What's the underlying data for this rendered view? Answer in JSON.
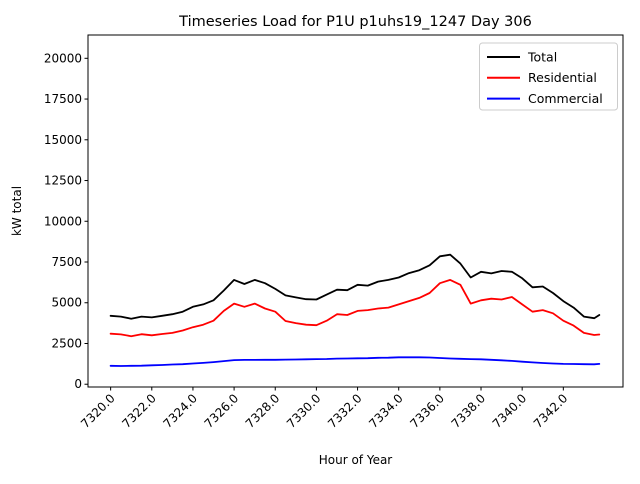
{
  "figure": {
    "title": "Timeseries Load for P1U p1uhs19_1247  Day 306"
  },
  "chart_data": {
    "type": "line",
    "title": "Timeseries Load for P1U p1uhs19_1247  Day 306",
    "xlabel": "Hour of Year",
    "ylabel": "kW total",
    "grid": false,
    "legend_position": "upper right",
    "xlim": [
      7318.9,
      7344.9
    ],
    "ylim": [
      -170,
      21430
    ],
    "xticks": [
      7320,
      7322,
      7324,
      7326,
      7328,
      7330,
      7332,
      7334,
      7336,
      7338,
      7340,
      7342
    ],
    "xtick_labels": [
      "7320.0",
      "7322.0",
      "7324.0",
      "7326.0",
      "7328.0",
      "7330.0",
      "7332.0",
      "7334.0",
      "7336.0",
      "7338.0",
      "7340.0",
      "7342.0"
    ],
    "yticks": [
      0,
      2500,
      5000,
      7500,
      10000,
      12500,
      15000,
      17500,
      20000
    ],
    "ytick_labels": [
      "0",
      "2500",
      "5000",
      "7500",
      "10000",
      "12500",
      "15000",
      "17500",
      "20000"
    ],
    "x": [
      7320.0,
      7320.5,
      7321.0,
      7321.5,
      7322.0,
      7322.5,
      7323.0,
      7323.5,
      7324.0,
      7324.5,
      7325.0,
      7325.5,
      7326.0,
      7326.5,
      7327.0,
      7327.5,
      7328.0,
      7328.5,
      7329.0,
      7329.5,
      7330.0,
      7330.5,
      7331.0,
      7331.5,
      7332.0,
      7332.5,
      7333.0,
      7333.5,
      7334.0,
      7334.5,
      7335.0,
      7335.5,
      7336.0,
      7336.5,
      7337.0,
      7337.5,
      7338.0,
      7338.5,
      7339.0,
      7339.5,
      7340.0,
      7340.5,
      7341.0,
      7341.5,
      7342.0,
      7342.5,
      7343.0,
      7343.5,
      7343.75
    ],
    "series": [
      {
        "name": "Total",
        "color": "#000000",
        "values": [
          4200,
          4150,
          4020,
          4150,
          4100,
          4200,
          4300,
          4450,
          4750,
          4900,
          5150,
          5750,
          6400,
          6150,
          6400,
          6200,
          5850,
          5450,
          5330,
          5220,
          5200,
          5500,
          5800,
          5770,
          6100,
          6050,
          6300,
          6400,
          6550,
          6820,
          7000,
          7300,
          7850,
          7950,
          7400,
          6550,
          6900,
          6800,
          6950,
          6900,
          6500,
          5950,
          6000,
          5600,
          5100,
          4700,
          4150,
          4050,
          4250
        ]
      },
      {
        "name": "Residential",
        "color": "#ff0000",
        "values": [
          3100,
          3060,
          2950,
          3070,
          3000,
          3080,
          3150,
          3300,
          3500,
          3650,
          3900,
          4500,
          4950,
          4750,
          4950,
          4650,
          4450,
          3880,
          3750,
          3650,
          3620,
          3900,
          4300,
          4250,
          4500,
          4550,
          4650,
          4700,
          4900,
          5100,
          5300,
          5600,
          6200,
          6400,
          6100,
          4950,
          5150,
          5250,
          5200,
          5350,
          4900,
          4450,
          4550,
          4350,
          3900,
          3600,
          3150,
          3020,
          3050
        ]
      },
      {
        "name": "Commercial",
        "color": "#0000ff",
        "values": [
          1130,
          1120,
          1130,
          1140,
          1160,
          1180,
          1210,
          1230,
          1270,
          1310,
          1360,
          1420,
          1480,
          1490,
          1490,
          1500,
          1500,
          1510,
          1520,
          1530,
          1540,
          1550,
          1570,
          1580,
          1590,
          1600,
          1620,
          1630,
          1650,
          1650,
          1650,
          1640,
          1610,
          1580,
          1560,
          1540,
          1530,
          1500,
          1470,
          1430,
          1380,
          1340,
          1300,
          1270,
          1250,
          1240,
          1230,
          1220,
          1250
        ]
      }
    ]
  }
}
